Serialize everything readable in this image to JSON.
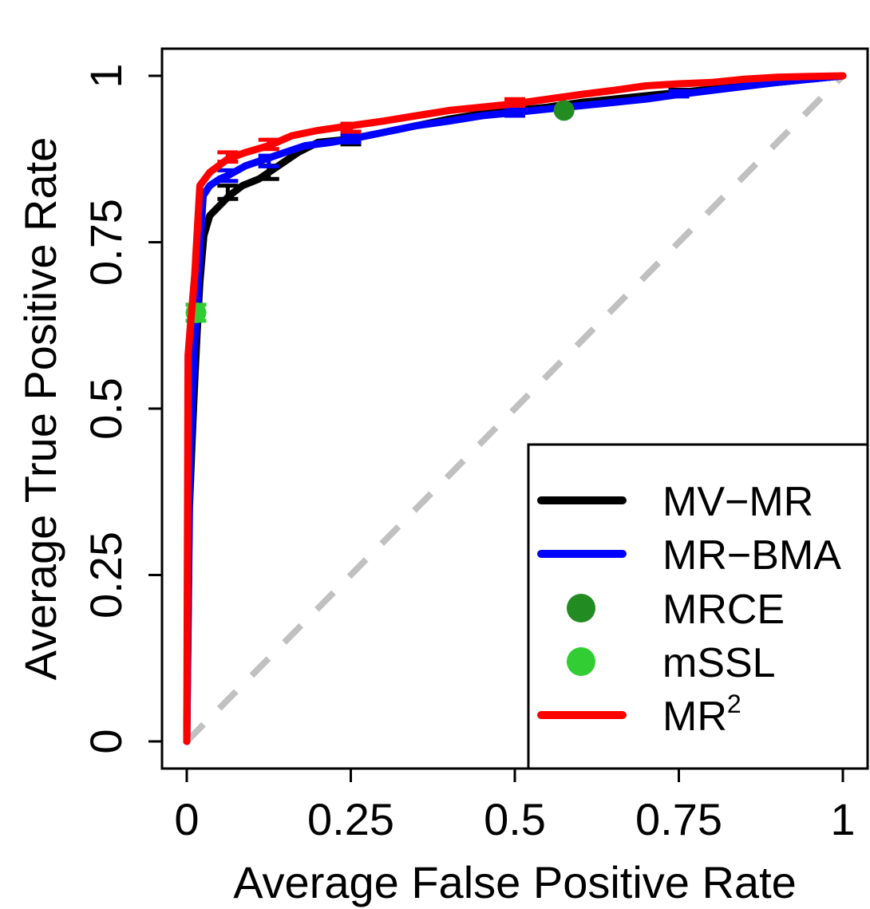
{
  "chart_data": {
    "type": "line",
    "title": "",
    "xlabel": "Average False Positive Rate",
    "ylabel": "Average True Positive Rate",
    "xlim": [
      0,
      1
    ],
    "ylim": [
      0,
      1
    ],
    "xticks": [
      {
        "value": 0,
        "label": "0"
      },
      {
        "value": 0.25,
        "label": "0.25"
      },
      {
        "value": 0.5,
        "label": "0.5"
      },
      {
        "value": 0.75,
        "label": "0.75"
      },
      {
        "value": 1,
        "label": "1"
      }
    ],
    "yticks": [
      {
        "value": 0,
        "label": "0"
      },
      {
        "value": 0.25,
        "label": "0.25"
      },
      {
        "value": 0.5,
        "label": "0.5"
      },
      {
        "value": 0.75,
        "label": "0.75"
      },
      {
        "value": 1,
        "label": "1"
      }
    ],
    "reference_line": {
      "name": "diagonal",
      "x": [
        0,
        1
      ],
      "y": [
        0,
        1
      ],
      "color": "#c0c0c0",
      "style": "dashed"
    },
    "series": [
      {
        "name": "MV-MR",
        "kind": "line",
        "color": "#000000",
        "x": [
          0,
          0.004,
          0.008,
          0.012,
          0.016,
          0.02,
          0.026,
          0.035,
          0.05,
          0.065,
          0.085,
          0.11,
          0.14,
          0.17,
          0.2,
          0.25,
          0.3,
          0.35,
          0.4,
          0.45,
          0.5,
          0.55,
          0.6,
          0.65,
          0.7,
          0.75,
          0.8,
          0.85,
          0.9,
          0.95,
          1
        ],
        "y": [
          0,
          0.35,
          0.45,
          0.54,
          0.62,
          0.69,
          0.76,
          0.79,
          0.805,
          0.82,
          0.835,
          0.845,
          0.865,
          0.885,
          0.9,
          0.905,
          0.915,
          0.925,
          0.935,
          0.943,
          0.948,
          0.953,
          0.96,
          0.965,
          0.97,
          0.975,
          0.98,
          0.985,
          0.99,
          0.995,
          1
        ],
        "errorbars": [
          {
            "x": 0.0625,
            "y": 0.825,
            "err": 0.01
          },
          {
            "x": 0.125,
            "y": 0.855,
            "err": 0.01
          },
          {
            "x": 0.25,
            "y": 0.905,
            "err": 0.008
          },
          {
            "x": 0.5,
            "y": 0.948,
            "err": 0.005
          },
          {
            "x": 0.75,
            "y": 0.975,
            "err": 0.004
          }
        ]
      },
      {
        "name": "MR-BMA",
        "kind": "line",
        "color": "#0000ff",
        "x": [
          0,
          0.004,
          0.008,
          0.012,
          0.016,
          0.02,
          0.025,
          0.035,
          0.05,
          0.0625,
          0.09,
          0.12,
          0.15,
          0.18,
          0.22,
          0.25,
          0.3,
          0.35,
          0.4,
          0.45,
          0.5,
          0.55,
          0.6,
          0.65,
          0.7,
          0.75,
          0.8,
          0.85,
          0.9,
          0.95,
          1
        ],
        "y": [
          0,
          0.38,
          0.5,
          0.6,
          0.66,
          0.74,
          0.82,
          0.835,
          0.845,
          0.85,
          0.865,
          0.875,
          0.885,
          0.895,
          0.9,
          0.905,
          0.915,
          0.925,
          0.932,
          0.94,
          0.945,
          0.95,
          0.955,
          0.96,
          0.965,
          0.972,
          0.978,
          0.984,
          0.99,
          0.995,
          1
        ],
        "errorbars": [
          {
            "x": 0.0625,
            "y": 0.85,
            "err": 0.008
          },
          {
            "x": 0.125,
            "y": 0.872,
            "err": 0.008
          },
          {
            "x": 0.25,
            "y": 0.906,
            "err": 0.006
          },
          {
            "x": 0.5,
            "y": 0.945,
            "err": 0.005
          },
          {
            "x": 0.75,
            "y": 0.973,
            "err": 0.004
          }
        ]
      },
      {
        "name": "MRCE",
        "kind": "point",
        "color": "#228b22",
        "points": [
          {
            "x": 0.575,
            "y": 0.948
          }
        ]
      },
      {
        "name": "mSSL",
        "kind": "point",
        "color": "#32cd32",
        "points": [
          {
            "x": 0.014,
            "y": 0.644,
            "err": 0.012
          }
        ]
      },
      {
        "name": "MR",
        "superscript": "2",
        "kind": "line",
        "color": "#ff0000",
        "x": [
          0,
          0.002,
          0.006,
          0.012,
          0.02,
          0.035,
          0.0625,
          0.09,
          0.125,
          0.16,
          0.2,
          0.25,
          0.3,
          0.35,
          0.4,
          0.45,
          0.5,
          0.55,
          0.6,
          0.65,
          0.7,
          0.75,
          0.8,
          0.85,
          0.9,
          0.95,
          1
        ],
        "y": [
          0,
          0.58,
          0.63,
          0.7,
          0.835,
          0.855,
          0.875,
          0.885,
          0.895,
          0.91,
          0.918,
          0.925,
          0.932,
          0.94,
          0.948,
          0.953,
          0.958,
          0.965,
          0.972,
          0.978,
          0.985,
          0.988,
          0.99,
          0.995,
          0.998,
          0.999,
          1
        ],
        "errorbars": [
          {
            "x": 0.0625,
            "y": 0.878,
            "err": 0.007
          },
          {
            "x": 0.125,
            "y": 0.897,
            "err": 0.007
          },
          {
            "x": 0.25,
            "y": 0.922,
            "err": 0.006
          },
          {
            "x": 0.5,
            "y": 0.96,
            "err": 0.005
          }
        ]
      }
    ],
    "legend": {
      "placement": "bottom-right",
      "entries": [
        {
          "label": "MV−MR",
          "symbol": "line",
          "color": "#000000"
        },
        {
          "label": "MR−BMA",
          "symbol": "line",
          "color": "#0000ff"
        },
        {
          "label": "MRCE",
          "symbol": "point",
          "color": "#228b22"
        },
        {
          "label": "mSSL",
          "symbol": "point",
          "color": "#32cd32"
        },
        {
          "label": "MR",
          "superscript": "2",
          "symbol": "line",
          "color": "#ff0000"
        }
      ]
    }
  }
}
